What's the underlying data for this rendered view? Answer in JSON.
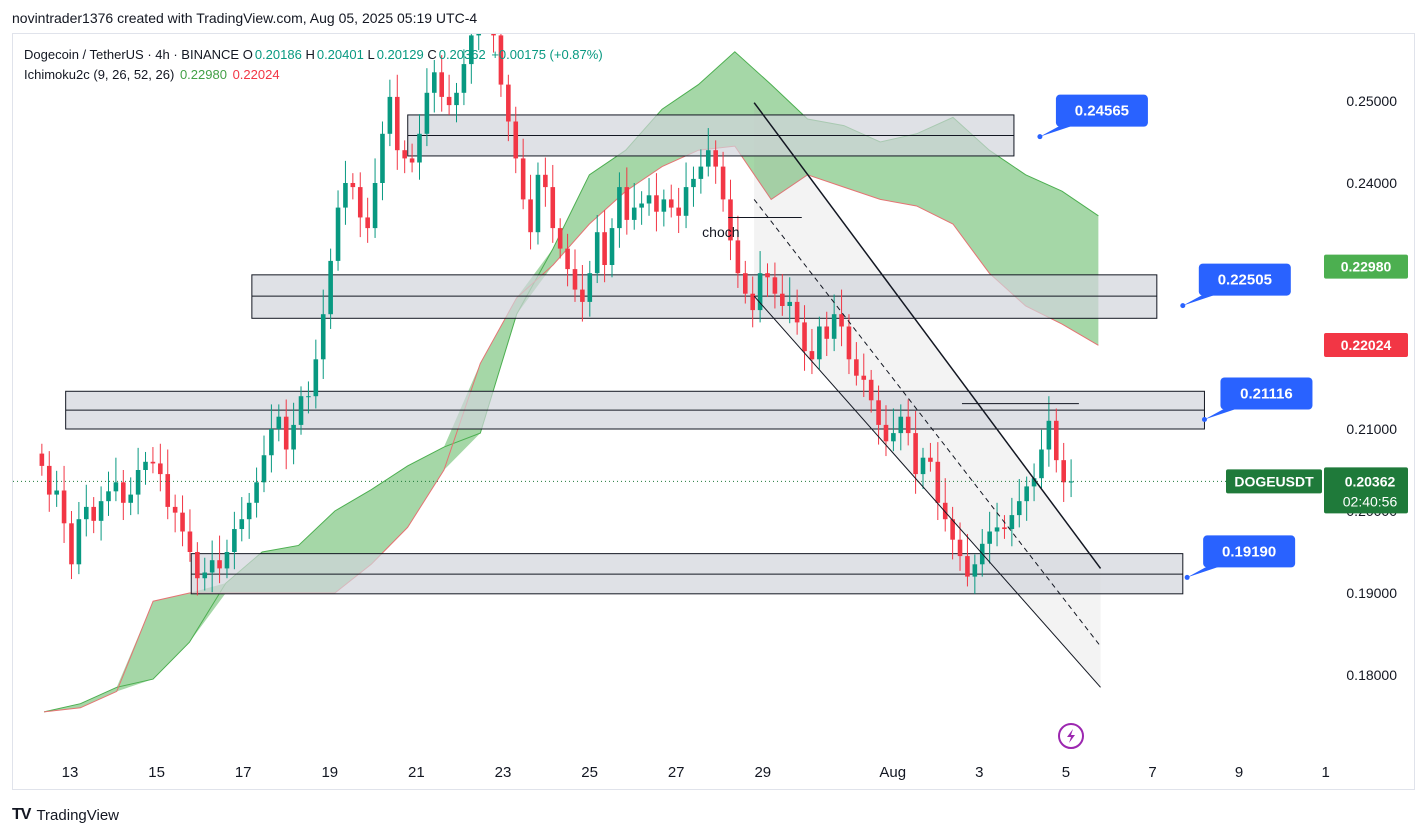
{
  "caption": "novintrader1376 created with TradingView.com, Aug 05, 2025 05:19 UTC-4",
  "legend": {
    "symbol": "Dogecoin / TetherUS · 4h · BINANCE",
    "o_label": "O",
    "o": "0.20186",
    "h_label": "H",
    "h": "0.20401",
    "l_label": "L",
    "l": "0.20129",
    "c_label": "C",
    "c": "0.20362",
    "change": "+0.00175 (+0.87%)",
    "indicator": "Ichimoku2c (9, 26, 52, 26)",
    "ichimoku_a": "0.22980",
    "ichimoku_b": "0.22024"
  },
  "footer": {
    "brand": "TradingView",
    "logo_text": "TV"
  },
  "colors": {
    "up": "#089981",
    "down": "#f23645",
    "cloud": "#4caf50",
    "cloud_edge": "#e57373",
    "zone_fill": "#d1d4dc",
    "callout": "#2962ff",
    "price_tag_green": "#43a047",
    "price_tag_red": "#f23645",
    "price_tag_dark_green": "#1f7a3a"
  },
  "chart_data": {
    "type": "candlestick",
    "symbol": "DOGEUSDT",
    "timeframe": "4h",
    "y_axis": {
      "range": [
        0.175,
        0.2575
      ],
      "ticks": [
        "0.25000",
        "0.24000",
        "0.21000",
        "0.20000",
        "0.19000",
        "0.18000"
      ],
      "tick_values": [
        0.25,
        0.24,
        0.21,
        0.2,
        0.19,
        0.18
      ]
    },
    "x_axis": {
      "labels": [
        "13",
        "15",
        "17",
        "19",
        "21",
        "23",
        "25",
        "27",
        "29",
        "Aug",
        "3",
        "5",
        "7",
        "9",
        "1"
      ],
      "day_index": [
        0,
        2,
        4,
        6,
        8,
        10,
        12,
        14,
        16,
        19,
        21,
        23,
        25,
        27,
        29
      ]
    },
    "price_tags": [
      {
        "label": "",
        "value": "0.22980",
        "price": 0.2298,
        "color": "#4caf50"
      },
      {
        "label": "",
        "value": "0.22024",
        "price": 0.22024,
        "color": "#f23645"
      },
      {
        "label": "DOGEUSDT",
        "value": "0.20362",
        "countdown": "02:40:56",
        "price": 0.20362,
        "color": "#1f7a3a"
      }
    ],
    "callouts": [
      {
        "label": "0.24565",
        "price": 0.24565,
        "day": 22.4
      },
      {
        "label": "0.22505",
        "price": 0.22505,
        "day": 25.7
      },
      {
        "label": "0.21116",
        "price": 0.21116,
        "day": 26.2
      },
      {
        "label": "0.19190",
        "price": 0.1919,
        "day": 25.8
      }
    ],
    "zones": [
      {
        "top": 0.2483,
        "bottom": 0.2433,
        "mid": 0.2458,
        "day_start": 7.8,
        "day_end": 21.8
      },
      {
        "top": 0.2288,
        "bottom": 0.2235,
        "mid": 0.2262,
        "day_start": 4.2,
        "day_end": 25.1
      },
      {
        "top": 0.2146,
        "bottom": 0.21,
        "mid": 0.2123,
        "day_start": -0.1,
        "day_end": 26.2
      },
      {
        "top": 0.1948,
        "bottom": 0.1899,
        "mid": 0.1923,
        "day_start": 2.8,
        "day_end": 25.7
      }
    ],
    "annotations": [
      {
        "text": "choch",
        "day": 14.6,
        "price": 0.2355
      }
    ],
    "last_close": 0.20362,
    "candles_4h_close_path": [
      0.2055,
      0.202,
      0.2025,
      0.1985,
      0.1935,
      0.199,
      0.2005,
      0.1988,
      0.2012,
      0.2024,
      0.2035,
      0.201,
      0.202,
      0.205,
      0.206,
      0.2058,
      0.2045,
      0.2005,
      0.1998,
      0.1975,
      0.195,
      0.1918,
      0.1925,
      0.194,
      0.193,
      0.195,
      0.1978,
      0.199,
      0.201,
      0.2035,
      0.2068,
      0.21,
      0.2115,
      0.2075,
      0.2105,
      0.214,
      0.214,
      0.2185,
      0.224,
      0.2305,
      0.237,
      0.24,
      0.2395,
      0.2358,
      0.2345,
      0.24,
      0.246,
      0.2505,
      0.244,
      0.243,
      0.2425,
      0.246,
      0.251,
      0.2535,
      0.2505,
      0.2495,
      0.251,
      0.2545,
      0.258,
      0.26,
      0.2635,
      0.258,
      0.252,
      0.2475,
      0.243,
      0.238,
      0.234,
      0.241,
      0.2395,
      0.2345,
      0.232,
      0.2295,
      0.227,
      0.2255,
      0.229,
      0.234,
      0.23,
      0.2345,
      0.2395,
      0.2355,
      0.237,
      0.2375,
      0.2385,
      0.2365,
      0.238,
      0.237,
      0.236,
      0.2395,
      0.2405,
      0.242,
      0.244,
      0.242,
      0.238,
      0.233,
      0.229,
      0.2265,
      0.2245,
      0.229,
      0.2285,
      0.2265,
      0.225,
      0.2255,
      0.223,
      0.2195,
      0.2185,
      0.2225,
      0.221,
      0.224,
      0.2225,
      0.2185,
      0.2165,
      0.216,
      0.2135,
      0.2105,
      0.2085,
      0.2095,
      0.2115,
      0.2095,
      0.2045,
      0.2065,
      0.206,
      0.201,
      0.199,
      0.1965,
      0.1945,
      0.192,
      0.1935,
      0.196,
      0.1975,
      0.198,
      0.1978,
      0.1995,
      0.2012,
      0.203,
      0.204,
      0.2075,
      0.211,
      0.2062,
      0.2035,
      0.2036
    ],
    "ichimoku": {
      "span_a": [
        0.1755,
        0.1765,
        0.1785,
        0.1795,
        0.184,
        0.1912,
        0.195,
        0.1958,
        0.2,
        0.2026,
        0.2055,
        0.2078,
        0.2095,
        0.224,
        0.232,
        0.241,
        0.244,
        0.249,
        0.252,
        0.256,
        0.252,
        0.2478,
        0.247,
        0.245,
        0.246,
        0.248,
        0.244,
        0.241,
        0.239,
        0.236
      ],
      "span_b": [
        0.1755,
        0.176,
        0.178,
        0.189,
        0.19,
        0.19,
        0.19,
        0.19,
        0.19,
        0.1935,
        0.198,
        0.205,
        0.218,
        0.226,
        0.23,
        0.235,
        0.239,
        0.242,
        0.244,
        0.2445,
        0.238,
        0.241,
        0.2395,
        0.238,
        0.2372,
        0.235,
        0.229,
        0.225,
        0.2228,
        0.2202
      ]
    },
    "trendlines": [
      {
        "type": "channel_upper",
        "from": [
          15.8,
          0.2498
        ],
        "to": [
          23.8,
          0.193
        ]
      },
      {
        "type": "channel_lower",
        "from": [
          15.8,
          0.2262
        ],
        "to": [
          23.8,
          0.1785
        ]
      },
      {
        "type": "channel_mid_dashed",
        "from": [
          15.8,
          0.238
        ],
        "to": [
          23.8,
          0.1835
        ]
      },
      {
        "type": "choch_level",
        "from": [
          15.2,
          0.2358
        ],
        "to": [
          16.9,
          0.2358
        ]
      },
      {
        "type": "high_level",
        "from": [
          20.6,
          0.2131
        ],
        "to": [
          23.3,
          0.2131
        ]
      }
    ]
  }
}
